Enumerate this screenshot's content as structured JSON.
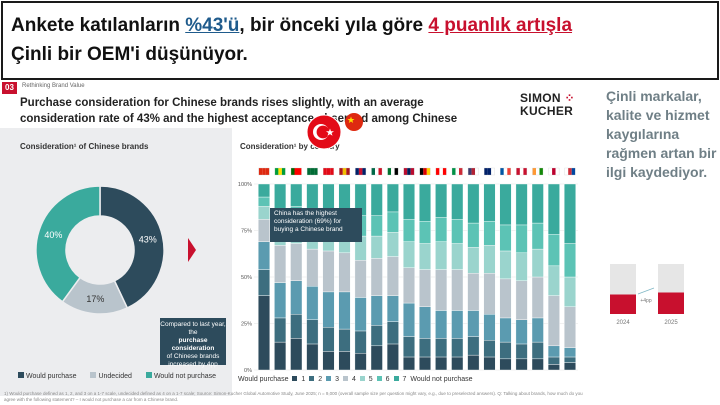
{
  "headline": {
    "line1_prefix": "Ankete katılanların ",
    "line1_percent": "%43'ü",
    "line1_mid": ", bir önceki yıla göre ",
    "line1_increase": "4 puanlık artışla",
    "line2": "Çinli bir OEM'i düşünüyor."
  },
  "slide": {
    "tag": "03",
    "subtitle": "Rethinking Brand Value",
    "title": "Purchase consideration for Chinese brands rises slightly, with an average consideration rate of 43% and the highest acceptance observed among Chinese respondents",
    "logo_line1": "SIMON",
    "logo_dots": "⁘",
    "logo_line2": "KUCHER",
    "left_panel": {
      "title": "Consideration¹ of Chinese brands",
      "compare_lead": "Compared to last year, the",
      "compare_bold": "purchase consideration",
      "compare_tail": "of Chinese brands increased by 4pp"
    },
    "right_panel": {
      "title": "Consideration¹ by country",
      "callout": "China has the highest consideration (69%) for buying a Chinese brand",
      "legend_lead": "Would purchase",
      "legend_tail": "Would not purchase"
    },
    "footnote": "1) Would purchase defined as 1, 2, and 3 on a 1-7 scale, undecided defined as 4 on a 1-7 scale; Source: Simon-Kucher Global Automotive Study, June 2025; n = 9,000 (overall sample size per question might vary, e.g., due to preselected answers). Q: Talking about brands, how much do you agree with the following statement? – I would not purchase a car from a Chinese brand."
  },
  "side_text": "Çinli markalar, kalite ve hizmet kaygılarına rağmen artan bir ilgi kaydediyor.",
  "mini_chart": {
    "years": [
      "2024",
      "2025"
    ],
    "delta": "+4pp"
  },
  "colors": {
    "red": "#c8102e",
    "dark_teal": "#2d4b5c",
    "mid_teal": "#4d8a9c",
    "light_gray": "#b9c4cc",
    "teal": "#3aaa9d",
    "side_text": "#6f7f86"
  },
  "chart_data": [
    {
      "type": "pie",
      "title": "Consideration¹ of Chinese brands",
      "labels": [
        "Would purchase",
        "Undecided",
        "Would not purchase"
      ],
      "values": [
        43,
        17,
        40
      ],
      "label_texts": [
        "43%",
        "17%",
        "40%"
      ],
      "colors": [
        "#2d4b5c",
        "#b9c4cc",
        "#3aaa9d"
      ],
      "legend_position": "bottom"
    },
    {
      "type": "bar",
      "title": "Consideration¹ by country",
      "stacked": true,
      "categories": [
        "China",
        "Brazil",
        "Portugal",
        "Saudi Arabia",
        "Turkey",
        "Spain",
        "United Kingdom",
        "Mexico",
        "UAE",
        "Norway",
        "Germany",
        "Canada",
        "Italy",
        "United States",
        "Australia",
        "France",
        "Denmark",
        "India",
        "Japan",
        "South Korea"
      ],
      "flags": [
        [
          "#de2910",
          "#de2910",
          "#de2910"
        ],
        [
          "#009c3b",
          "#ffdf00",
          "#009c3b"
        ],
        [
          "#006600",
          "#ff0000",
          "#ff0000"
        ],
        [
          "#006c35",
          "#006c35",
          "#006c35"
        ],
        [
          "#e30a17",
          "#e30a17",
          "#e30a17"
        ],
        [
          "#aa151b",
          "#f1bf00",
          "#aa151b"
        ],
        [
          "#012169",
          "#c8102e",
          "#012169"
        ],
        [
          "#006847",
          "#ffffff",
          "#ce1126"
        ],
        [
          "#00732f",
          "#ffffff",
          "#000000"
        ],
        [
          "#ba0c2f",
          "#00205b",
          "#ba0c2f"
        ],
        [
          "#000000",
          "#dd0000",
          "#ffce00"
        ],
        [
          "#ff0000",
          "#ffffff",
          "#ff0000"
        ],
        [
          "#009246",
          "#ffffff",
          "#ce2b37"
        ],
        [
          "#3c3b6e",
          "#b22234",
          "#ffffff"
        ],
        [
          "#012169",
          "#012169",
          "#ffffff"
        ],
        [
          "#0055a4",
          "#ffffff",
          "#ef4135"
        ],
        [
          "#c8102e",
          "#ffffff",
          "#c8102e"
        ],
        [
          "#ff9933",
          "#ffffff",
          "#138808"
        ],
        [
          "#ffffff",
          "#bc002d",
          "#ffffff"
        ],
        [
          "#ffffff",
          "#cd2e3a",
          "#0047a0"
        ]
      ],
      "legend": [
        "1",
        "2",
        "3",
        "4",
        "5",
        "6",
        "7"
      ],
      "segment_colors": [
        "#2d4b5c",
        "#3d6e7f",
        "#5b9bb0",
        "#b9c4cc",
        "#9ad4cd",
        "#5cc3b5",
        "#3aaa9d"
      ],
      "series": [
        {
          "name": "1",
          "values": [
            40,
            15,
            17,
            14,
            10,
            10,
            9,
            13,
            14,
            7,
            7,
            7,
            7,
            8,
            7,
            6,
            6,
            6,
            3,
            4
          ]
        },
        {
          "name": "2",
          "values": [
            14,
            13,
            13,
            13,
            13,
            12,
            12,
            11,
            12,
            11,
            10,
            10,
            10,
            10,
            9,
            9,
            8,
            9,
            4,
            3
          ]
        },
        {
          "name": "3",
          "values": [
            15,
            19,
            18,
            18,
            19,
            20,
            18,
            16,
            14,
            18,
            17,
            15,
            15,
            14,
            14,
            13,
            13,
            13,
            6,
            5
          ]
        },
        {
          "name": "4",
          "values": [
            12,
            20,
            20,
            20,
            22,
            21,
            20,
            20,
            21,
            19,
            20,
            22,
            22,
            20,
            22,
            21,
            21,
            22,
            27,
            22
          ]
        },
        {
          "name": "5",
          "values": [
            7,
            11,
            11,
            12,
            12,
            13,
            13,
            12,
            13,
            14,
            14,
            15,
            14,
            14,
            15,
            15,
            15,
            15,
            16,
            16
          ]
        },
        {
          "name": "6",
          "values": [
            5,
            9,
            9,
            10,
            10,
            10,
            11,
            11,
            11,
            12,
            12,
            13,
            13,
            13,
            13,
            14,
            15,
            14,
            17,
            18
          ]
        },
        {
          "name": "7",
          "values": [
            7,
            13,
            12,
            13,
            14,
            14,
            17,
            17,
            15,
            19,
            20,
            18,
            19,
            21,
            20,
            22,
            22,
            21,
            27,
            32
          ]
        }
      ],
      "yticks": [
        "0%",
        "25%",
        "50%",
        "75%",
        "100%"
      ],
      "ylim": [
        0,
        100
      ],
      "grid": true,
      "legend_position": "bottom"
    },
    {
      "type": "bar",
      "stacked": true,
      "categories": [
        "2024",
        "2025"
      ],
      "series": [
        {
          "name": "consideration",
          "values": [
            39,
            43
          ]
        },
        {
          "name": "rest",
          "values": [
            61,
            57
          ]
        }
      ],
      "colors": [
        "#c8102e",
        "#e6e6e6"
      ],
      "annotation": "+4pp",
      "ylim": [
        0,
        100
      ]
    }
  ]
}
